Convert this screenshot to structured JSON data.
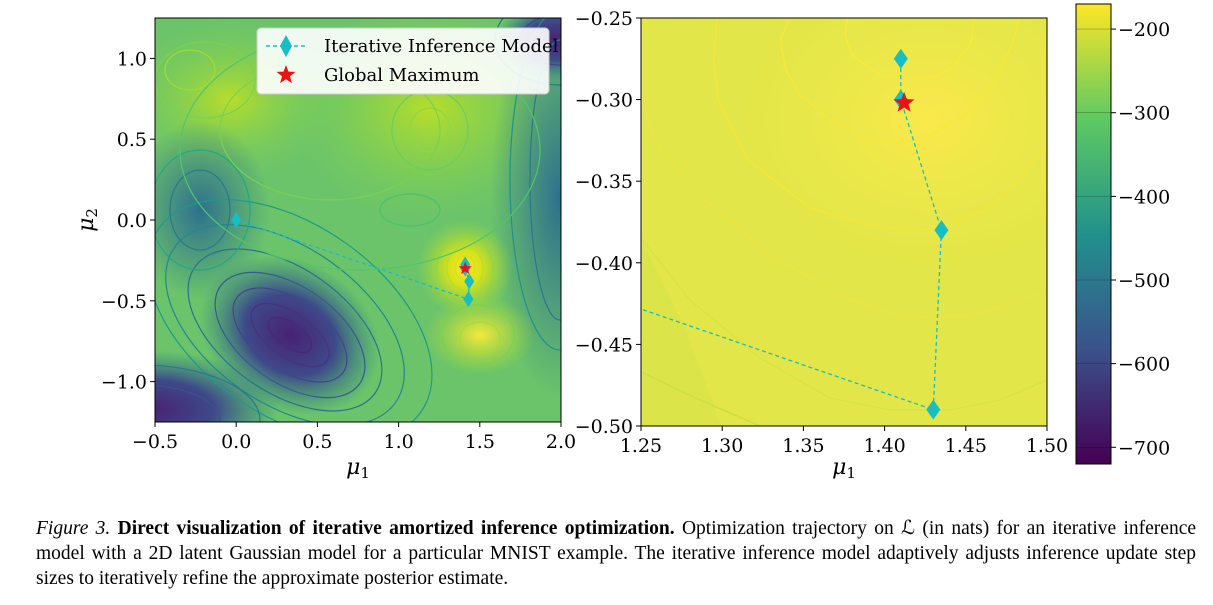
{
  "chart_data": [
    {
      "type": "contour",
      "xlabel": "μ1",
      "ylabel": "μ2",
      "xlim": [
        -0.5,
        2.0
      ],
      "ylim": [
        -1.25,
        1.25
      ],
      "xticks": [
        -0.5,
        0.0,
        0.5,
        1.0,
        1.5,
        2.0
      ],
      "xtick_labels": [
        "−0.5",
        "0.0",
        "0.5",
        "1.0",
        "1.5",
        "2.0"
      ],
      "yticks": [
        1.0,
        0.5,
        0.0,
        -0.5,
        -1.0
      ],
      "ytick_labels": [
        "1.0",
        "0.5",
        "0.0",
        "−0.5",
        "−1.0"
      ],
      "legend": {
        "position": "top-right",
        "entries": [
          {
            "label": "Iterative Inference Model",
            "marker": "diamond",
            "color": "#17bec4"
          },
          {
            "label": "Global Maximum",
            "marker": "star",
            "color": "#ee1111"
          }
        ]
      },
      "series": [
        {
          "name": "Iterative Inference Model",
          "x": [
            0.0,
            1.43,
            1.435,
            1.41,
            1.41
          ],
          "y": [
            0.0,
            -0.49,
            -0.38,
            -0.3,
            -0.275
          ]
        },
        {
          "name": "Global Maximum",
          "x": [
            1.41
          ],
          "y": [
            -0.3
          ]
        }
      ]
    },
    {
      "type": "contour",
      "xlabel": "μ1",
      "xlim": [
        1.25,
        1.5
      ],
      "ylim": [
        -0.5,
        -0.25
      ],
      "xticks": [
        1.25,
        1.3,
        1.35,
        1.4,
        1.45,
        1.5
      ],
      "xtick_labels": [
        "1.25",
        "1.30",
        "1.35",
        "1.40",
        "1.45",
        "1.50"
      ],
      "yticks": [
        -0.25,
        -0.3,
        -0.35,
        -0.4,
        -0.45,
        -0.5
      ],
      "ytick_labels": [
        "−0.25",
        "−0.30",
        "−0.35",
        "−0.40",
        "−0.45",
        "−0.50"
      ],
      "series": [
        {
          "name": "Iterative Inference Model",
          "x": [
            0.0,
            1.43,
            1.435,
            1.41,
            1.41
          ],
          "y": [
            0.0,
            -0.49,
            -0.38,
            -0.3,
            -0.275
          ]
        },
        {
          "name": "Global Maximum",
          "x": [
            1.412
          ],
          "y": [
            -0.302
          ]
        }
      ]
    },
    {
      "type": "colorbar",
      "range": [
        -720,
        -170
      ],
      "ticks": [
        -200,
        -300,
        -400,
        -500,
        -600,
        -700
      ],
      "tick_labels": [
        "−200",
        "−300",
        "−400",
        "−500",
        "−600",
        "−700"
      ],
      "colormap": [
        "#440154",
        "#3b528b",
        "#21918c",
        "#5ec962",
        "#fde725"
      ]
    }
  ],
  "caption": {
    "label": "Figure 3.",
    "title": "Direct visualization of iterative amortized inference optimization.",
    "body": "Optimization trajectory on ℒ (in nats) for an iterative inference model with a 2D latent Gaussian model for a particular MNIST example. The iterative inference model adaptively adjusts inference update step sizes to iteratively refine the approximate posterior estimate."
  }
}
